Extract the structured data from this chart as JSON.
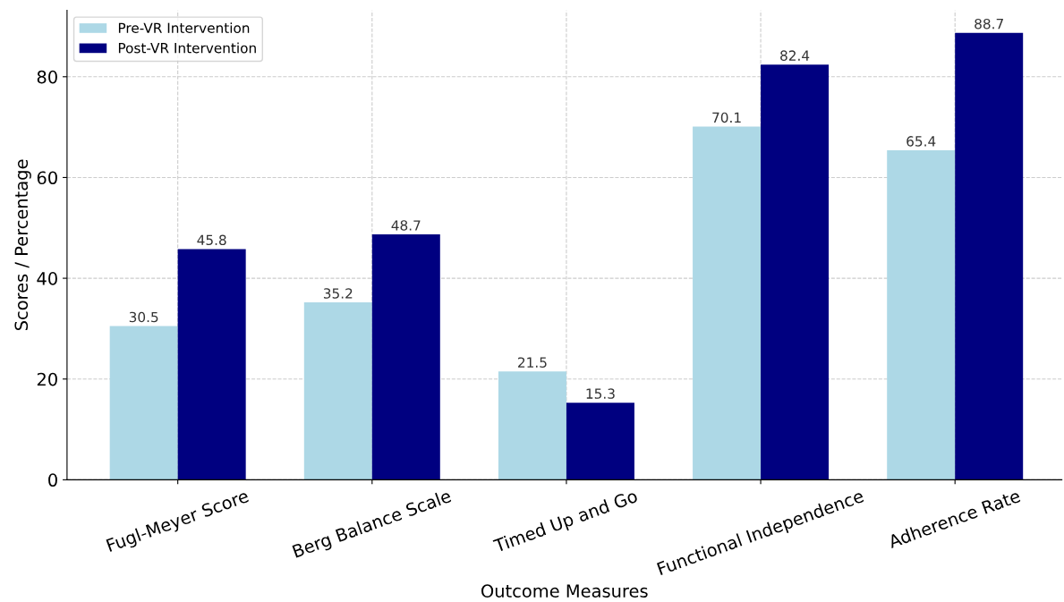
{
  "chart_data": {
    "type": "bar",
    "xlabel": "Outcome Measures",
    "ylabel": "Scores / Percentage",
    "categories": [
      "Fugl-Meyer Score",
      "Berg Balance Scale",
      "Timed Up and Go",
      "Functional Independence",
      "Adherence Rate"
    ],
    "series": [
      {
        "name": "Pre-VR Intervention",
        "color": "#add8e6",
        "values": [
          30.5,
          35.2,
          21.5,
          70.1,
          65.4
        ]
      },
      {
        "name": "Post-VR Intervention",
        "color": "#000080",
        "values": [
          45.8,
          48.7,
          15.3,
          82.4,
          88.7
        ]
      }
    ],
    "ylim": [
      0,
      93.2
    ],
    "yticks": [
      0,
      20,
      40,
      60,
      80
    ],
    "grid": true,
    "legend": "top left",
    "data_labels": true
  }
}
